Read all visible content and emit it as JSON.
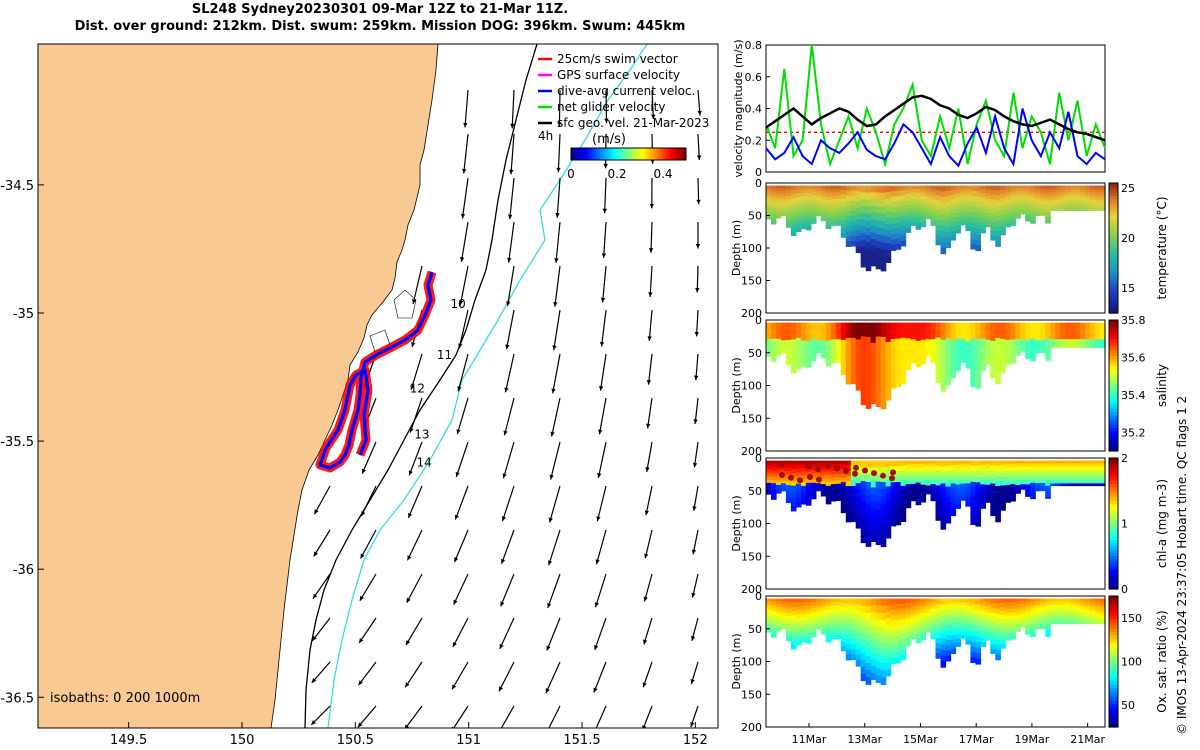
{
  "header": {
    "line1": "SL248 Sydney20230301 09-Mar 12Z to 21-Mar 11Z.",
    "line2": "Dist. over ground: 212km. Dist. swum: 259km. Mission DOG: 396km. Swum: 445km"
  },
  "colors": {
    "land": "#f9c994",
    "sea": "#ffffff",
    "track_red": "#ff0000",
    "track_blue": "#0000ff",
    "line_green": "#00dd00",
    "line_black": "#000000",
    "contour_cyan": "#33dddd"
  },
  "chart_data": [
    {
      "type": "map",
      "xlim": [
        149.1,
        152.1
      ],
      "ylim": [
        -36.62,
        -33.95
      ],
      "x_ticks": [
        "149.5",
        "150",
        "150.5",
        "151",
        "151.5",
        "152"
      ],
      "y_ticks": [
        "-34.5",
        "-35",
        "-35.5",
        "-36",
        "-36.5"
      ],
      "legend": [
        "25cm/s swim vector",
        "GPS surface velocity",
        "dive-avg current veloc.",
        "net glider velocity",
        "sfc geo. vel. 21-Mar-2023"
      ],
      "legend_suffix": "4h",
      "colorbar": {
        "label": "(m/s)",
        "ticks": [
          "0",
          "0.2",
          "0.4"
        ],
        "range": [
          0,
          0.5
        ]
      },
      "isobaths_label": "isobaths: 0   200  1000m",
      "track_day_labels": [
        "10",
        "11",
        "12",
        "13",
        "14"
      ],
      "track_day_positions_lonlat": [
        [
          150.92,
          -34.98
        ],
        [
          150.86,
          -35.18
        ],
        [
          150.74,
          -35.31
        ],
        [
          150.76,
          -35.49
        ],
        [
          150.77,
          -35.6
        ]
      ]
    },
    {
      "type": "line",
      "ylabel": "velocity magnitude (m/s)",
      "ylim": [
        0,
        0.8
      ],
      "y_ticks": [
        "0",
        "0.2",
        "0.4",
        "0.6",
        "0.8"
      ],
      "series": [
        {
          "color": "black",
          "values": [
            0.28,
            0.32,
            0.36,
            0.4,
            0.35,
            0.3,
            0.34,
            0.37,
            0.4,
            0.38,
            0.33,
            0.29,
            0.3,
            0.35,
            0.39,
            0.43,
            0.47,
            0.48,
            0.46,
            0.42,
            0.4,
            0.36,
            0.34,
            0.37,
            0.41,
            0.39,
            0.35,
            0.32,
            0.3,
            0.29,
            0.31,
            0.33,
            0.3,
            0.27,
            0.25,
            0.24,
            0.22,
            0.2
          ]
        },
        {
          "color": "blue",
          "values": [
            0.15,
            0.08,
            0.12,
            0.22,
            0.1,
            0.05,
            0.2,
            0.15,
            0.12,
            0.18,
            0.25,
            0.14,
            0.1,
            0.08,
            0.18,
            0.3,
            0.25,
            0.15,
            0.05,
            0.22,
            0.1,
            0.04,
            0.18,
            0.28,
            0.12,
            0.35,
            0.15,
            0.05,
            0.4,
            0.2,
            0.1,
            0.25,
            0.15,
            0.38,
            0.1,
            0.05,
            0.12,
            0.08
          ]
        },
        {
          "color": "green",
          "values": [
            0.3,
            0.15,
            0.65,
            0.1,
            0.2,
            0.8,
            0.3,
            0.05,
            0.2,
            0.35,
            0.15,
            0.4,
            0.25,
            0.05,
            0.3,
            0.4,
            0.55,
            0.2,
            0.1,
            0.35,
            0.15,
            0.4,
            0.05,
            0.3,
            0.45,
            0.2,
            0.1,
            0.5,
            0.15,
            0.35,
            0.25,
            0.05,
            0.5,
            0.2,
            0.45,
            0.1,
            0.3,
            0.15
          ]
        }
      ]
    },
    {
      "type": "heatmap",
      "ylabel": "Depth (m)",
      "clabel": "temperature (°C)",
      "y_ticks": [
        "0",
        "50",
        "100",
        "150",
        "200"
      ],
      "c_ticks": [
        "25",
        "20",
        "15"
      ],
      "c_range": [
        12.5,
        25.5
      ]
    },
    {
      "type": "heatmap",
      "ylabel": "Depth (m)",
      "clabel": "salinity",
      "y_ticks": [
        "0",
        "50",
        "100",
        "150",
        "200"
      ],
      "c_ticks": [
        "35.8",
        "35.6",
        "35.4",
        "35.2"
      ],
      "c_range": [
        35.1,
        35.8
      ]
    },
    {
      "type": "heatmap",
      "ylabel": "Depth (m)",
      "clabel": "chl-a (mg m-3)",
      "y_ticks": [
        "0",
        "50",
        "100",
        "150",
        "200"
      ],
      "c_ticks": [
        "2",
        "1",
        "0"
      ],
      "c_range": [
        0,
        2
      ]
    },
    {
      "type": "heatmap",
      "ylabel": "Depth (m)",
      "clabel": "Ox. sat. ratio (%)",
      "y_ticks": [
        "0",
        "50",
        "100",
        "150",
        "200"
      ],
      "c_ticks": [
        "150",
        "100",
        "50"
      ],
      "c_range": [
        25,
        175
      ],
      "x_ticks": [
        "11Mar",
        "13Mar",
        "15Mar",
        "17Mar",
        "19Mar",
        "21Mar"
      ]
    }
  ],
  "side_note": "© IMOS 13-Apr-2024 23:37:05 Hobart time. QC flags 1  2"
}
